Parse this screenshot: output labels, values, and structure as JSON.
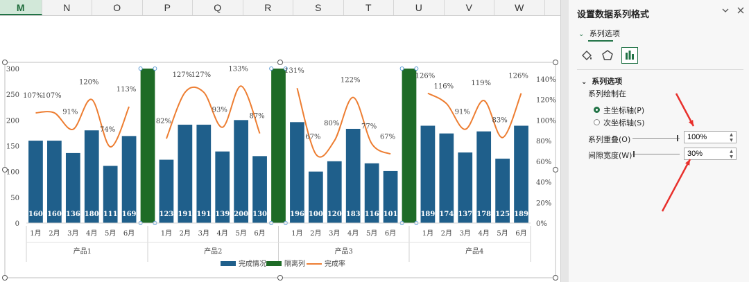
{
  "columns": [
    "M",
    "N",
    "O",
    "P",
    "Q",
    "R",
    "S",
    "T",
    "U",
    "V",
    "W"
  ],
  "active_column": "M",
  "panel": {
    "title": "设置数据系列格式",
    "tab_label": "系列选项",
    "section_title": "系列选项",
    "plot_on_label": "系列绘制在",
    "primary_axis_label": "主坐标轴(P)",
    "secondary_axis_label": "次坐标轴(S)",
    "overlap_label": "系列重叠(O)",
    "overlap_value": "100%",
    "gap_label": "间隙宽度(W)",
    "gap_value": "30%",
    "icons": [
      "fill-line-icon",
      "effects-pentagon-icon",
      "series-options-bar-icon"
    ],
    "annotation_color": "#e8302c"
  },
  "chart_data": {
    "type": "bar",
    "groups": [
      {
        "name": "产品1",
        "months": [
          "1月",
          "2月",
          "3月",
          "4月",
          "5月",
          "6月"
        ],
        "values": [
          160,
          160,
          136,
          180,
          111,
          169
        ],
        "rates": [
          "107%",
          "107%",
          "91%",
          "120%",
          "74%",
          "113%"
        ],
        "rate_values": [
          107,
          107,
          91,
          120,
          74,
          113
        ]
      },
      {
        "name": "产品2",
        "months": [
          "1月",
          "2月",
          "3月",
          "4月",
          "5月",
          "6月"
        ],
        "values": [
          123,
          191,
          191,
          139,
          200,
          130
        ],
        "rates": [
          "82%",
          "127%",
          "127%",
          "93%",
          "133%",
          "87%"
        ],
        "rate_values": [
          82,
          127,
          127,
          93,
          133,
          87
        ]
      },
      {
        "name": "产品3",
        "months": [
          "1月",
          "2月",
          "3月",
          "4月",
          "5月",
          "6月"
        ],
        "values": [
          196,
          100,
          120,
          183,
          116,
          101
        ],
        "rates": [
          "131%",
          "67%",
          "80%",
          "122%",
          "77%",
          "67%"
        ],
        "rate_values": [
          131,
          67,
          80,
          122,
          77,
          67
        ]
      },
      {
        "name": "产品4",
        "months": [
          "1月",
          "2月",
          "3月",
          "4月",
          "5月",
          "6月"
        ],
        "values": [
          189,
          174,
          137,
          178,
          125,
          189
        ],
        "rates": [
          "126%",
          "116%",
          "91%",
          "119%",
          "83%",
          "126%"
        ],
        "rate_values": [
          126,
          116,
          91,
          119,
          83,
          126
        ]
      }
    ],
    "separator_value": 300,
    "y_left_ticks": [
      "0",
      "50",
      "100",
      "150",
      "200",
      "250",
      "300"
    ],
    "y_left_range": [
      0,
      300
    ],
    "y_right_ticks": [
      "0%",
      "20%",
      "40%",
      "60%",
      "80%",
      "100%",
      "120%",
      "140%"
    ],
    "y_right_range": [
      0,
      150
    ],
    "legend": [
      "完成情况",
      "隔离列",
      "完成率"
    ],
    "colors": {
      "bar": "#1f5f8b",
      "separator": "#1e6b26",
      "line": "#ed7d31",
      "selection": "#5b9bd5"
    }
  }
}
